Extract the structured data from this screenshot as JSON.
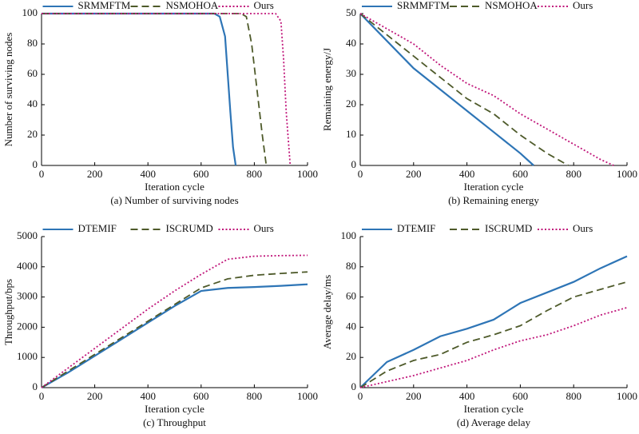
{
  "chart_data": [
    {
      "type": "line",
      "title": "(a) Number of surviving nodes",
      "x_label": "Iteration cycle",
      "y_label": "Number of surviving nodes",
      "xlim": [
        0,
        1000
      ],
      "xticks": [
        0,
        200,
        400,
        600,
        800,
        1000
      ],
      "ylim": [
        0,
        100
      ],
      "yticks": [
        0,
        20,
        40,
        60,
        80,
        100
      ],
      "series": [
        {
          "name": "SRMMFTM",
          "color": "#2e75b6",
          "style": "solid",
          "x": [
            0,
            600,
            650,
            670,
            690,
            700,
            710,
            720,
            730
          ],
          "values": [
            100,
            100,
            100,
            98,
            85,
            60,
            35,
            12,
            0
          ]
        },
        {
          "name": "NSMOHOA",
          "color": "#4e5a2a",
          "style": "dashed",
          "x": [
            0,
            700,
            750,
            770,
            790,
            810,
            830,
            845
          ],
          "values": [
            100,
            100,
            100,
            98,
            80,
            50,
            20,
            0
          ]
        },
        {
          "name": "Ours",
          "color": "#c0167a",
          "style": "dotted",
          "x": [
            0,
            850,
            880,
            900,
            910,
            920,
            935
          ],
          "values": [
            100,
            100,
            100,
            95,
            70,
            35,
            0
          ]
        }
      ]
    },
    {
      "type": "line",
      "title": "(b) Remaining energy",
      "x_label": "Iteration cycle",
      "y_label": "Remaining energy/J",
      "xlim": [
        0,
        1000
      ],
      "xticks": [
        0,
        200,
        400,
        600,
        800,
        1000
      ],
      "ylim": [
        0,
        50
      ],
      "yticks": [
        0,
        10,
        20,
        30,
        40,
        50
      ],
      "series": [
        {
          "name": "SRMMFTM",
          "color": "#2e75b6",
          "style": "solid",
          "x": [
            0,
            100,
            200,
            300,
            400,
            500,
            600,
            650
          ],
          "values": [
            50,
            41,
            32,
            25,
            18,
            11,
            4,
            0
          ]
        },
        {
          "name": "NSMOHOA",
          "color": "#4e5a2a",
          "style": "dashed",
          "x": [
            0,
            100,
            200,
            300,
            400,
            500,
            600,
            700,
            780
          ],
          "values": [
            50,
            43,
            36,
            29,
            22,
            17,
            10,
            4,
            0
          ]
        },
        {
          "name": "Ours",
          "color": "#c0167a",
          "style": "dotted",
          "x": [
            0,
            100,
            200,
            300,
            400,
            500,
            600,
            700,
            800,
            900,
            950
          ],
          "values": [
            50,
            45,
            40,
            33,
            27,
            23,
            17,
            12,
            7,
            2,
            0
          ]
        }
      ]
    },
    {
      "type": "line",
      "title": "(c) Throughput",
      "x_label": "Iteration cycle",
      "y_label": "Throughput/bps",
      "xlim": [
        0,
        1000
      ],
      "xticks": [
        0,
        200,
        400,
        600,
        800,
        1000
      ],
      "ylim": [
        0,
        5000
      ],
      "yticks": [
        0,
        1000,
        2000,
        3000,
        4000,
        5000
      ],
      "x": [
        0,
        100,
        200,
        300,
        400,
        500,
        600,
        700,
        800,
        900,
        1000
      ],
      "series": [
        {
          "name": "DTEMIF",
          "color": "#2e75b6",
          "style": "solid",
          "values": [
            0,
            500,
            1050,
            1600,
            2150,
            2700,
            3200,
            3300,
            3330,
            3370,
            3420
          ]
        },
        {
          "name": "ISCRUMD",
          "color": "#4e5a2a",
          "style": "dashed",
          "values": [
            0,
            550,
            1100,
            1650,
            2200,
            2750,
            3300,
            3600,
            3720,
            3780,
            3830
          ]
        },
        {
          "name": "Ours",
          "color": "#c0167a",
          "style": "dotted",
          "values": [
            0,
            650,
            1300,
            1950,
            2600,
            3200,
            3750,
            4250,
            4350,
            4370,
            4380
          ]
        }
      ]
    },
    {
      "type": "line",
      "title": "(d)  Average delay",
      "x_label": "Iteration cycle",
      "y_label": "Average delay/ms",
      "xlim": [
        0,
        1000
      ],
      "xticks": [
        0,
        200,
        400,
        600,
        800,
        1000
      ],
      "ylim": [
        0,
        100
      ],
      "yticks": [
        0,
        20,
        40,
        60,
        80,
        100
      ],
      "x": [
        0,
        100,
        200,
        300,
        400,
        500,
        600,
        700,
        800,
        900,
        1000
      ],
      "series": [
        {
          "name": "DTEMIF",
          "color": "#2e75b6",
          "style": "solid",
          "values": [
            0,
            17,
            25,
            34,
            39,
            45,
            56,
            63,
            70,
            79,
            87
          ]
        },
        {
          "name": "ISCRUMD",
          "color": "#4e5a2a",
          "style": "dashed",
          "values": [
            0,
            11,
            18,
            22,
            30,
            35,
            41,
            51,
            60,
            65,
            70
          ]
        },
        {
          "name": "Ours",
          "color": "#c0167a",
          "style": "dotted",
          "values": [
            0,
            4,
            8,
            13,
            18,
            25,
            31,
            35,
            41,
            48,
            53
          ]
        }
      ]
    }
  ]
}
